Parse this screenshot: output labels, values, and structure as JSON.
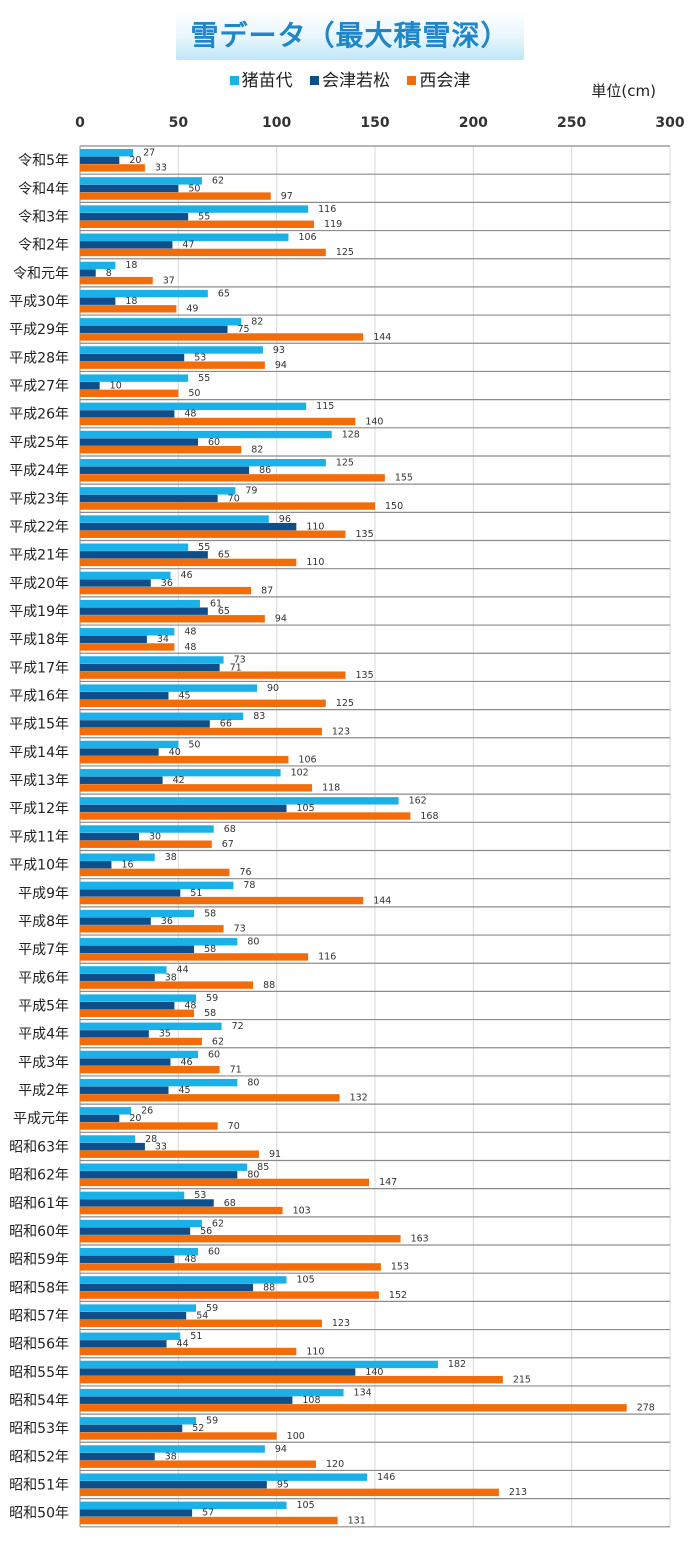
{
  "chart_data": {
    "type": "bar",
    "orientation": "horizontal",
    "title": "雪データ（最大積雪深）",
    "unit_label": "単位(cm)",
    "xlim": [
      0,
      300
    ],
    "xticks": [
      0,
      50,
      100,
      150,
      200,
      250,
      300
    ],
    "grid": true,
    "legend_position": "top-center",
    "colors": [
      "#1ab0e8",
      "#0d4e8b",
      "#f36c0a"
    ],
    "categories": [
      "令和5年",
      "令和4年",
      "令和3年",
      "令和2年",
      "令和元年",
      "平成30年",
      "平成29年",
      "平成28年",
      "平成27年",
      "平成26年",
      "平成25年",
      "平成24年",
      "平成23年",
      "平成22年",
      "平成21年",
      "平成20年",
      "平成19年",
      "平成18年",
      "平成17年",
      "平成16年",
      "平成15年",
      "平成14年",
      "平成13年",
      "平成12年",
      "平成11年",
      "平成10年",
      "平成9年",
      "平成8年",
      "平成7年",
      "平成6年",
      "平成5年",
      "平成4年",
      "平成3年",
      "平成2年",
      "平成元年",
      "昭和63年",
      "昭和62年",
      "昭和61年",
      "昭和60年",
      "昭和59年",
      "昭和58年",
      "昭和57年",
      "昭和56年",
      "昭和55年",
      "昭和54年",
      "昭和53年",
      "昭和52年",
      "昭和51年",
      "昭和50年"
    ],
    "series": [
      {
        "name": "猪苗代",
        "values": [
          27,
          62,
          116,
          106,
          18,
          65,
          82,
          93,
          55,
          115,
          128,
          125,
          79,
          96,
          55,
          46,
          61,
          48,
          73,
          90,
          83,
          50,
          102,
          162,
          68,
          38,
          78,
          58,
          80,
          44,
          59,
          72,
          60,
          80,
          26,
          28,
          85,
          53,
          62,
          60,
          105,
          59,
          51,
          182,
          134,
          59,
          94,
          146,
          105
        ]
      },
      {
        "name": "会津若松",
        "values": [
          20,
          50,
          55,
          47,
          8,
          18,
          75,
          53,
          10,
          48,
          60,
          86,
          70,
          110,
          65,
          36,
          65,
          34,
          71,
          45,
          66,
          40,
          42,
          105,
          30,
          16,
          51,
          36,
          58,
          38,
          48,
          35,
          46,
          45,
          20,
          33,
          80,
          68,
          56,
          48,
          88,
          54,
          44,
          140,
          108,
          52,
          38,
          95,
          57
        ]
      },
      {
        "name": "西会津",
        "values": [
          33,
          97,
          119,
          125,
          37,
          49,
          144,
          94,
          50,
          140,
          82,
          155,
          150,
          135,
          110,
          87,
          94,
          48,
          135,
          125,
          123,
          106,
          118,
          168,
          67,
          76,
          144,
          73,
          116,
          88,
          58,
          62,
          71,
          132,
          70,
          91,
          147,
          103,
          163,
          153,
          152,
          123,
          110,
          215,
          278,
          100,
          120,
          213,
          131
        ]
      }
    ]
  }
}
